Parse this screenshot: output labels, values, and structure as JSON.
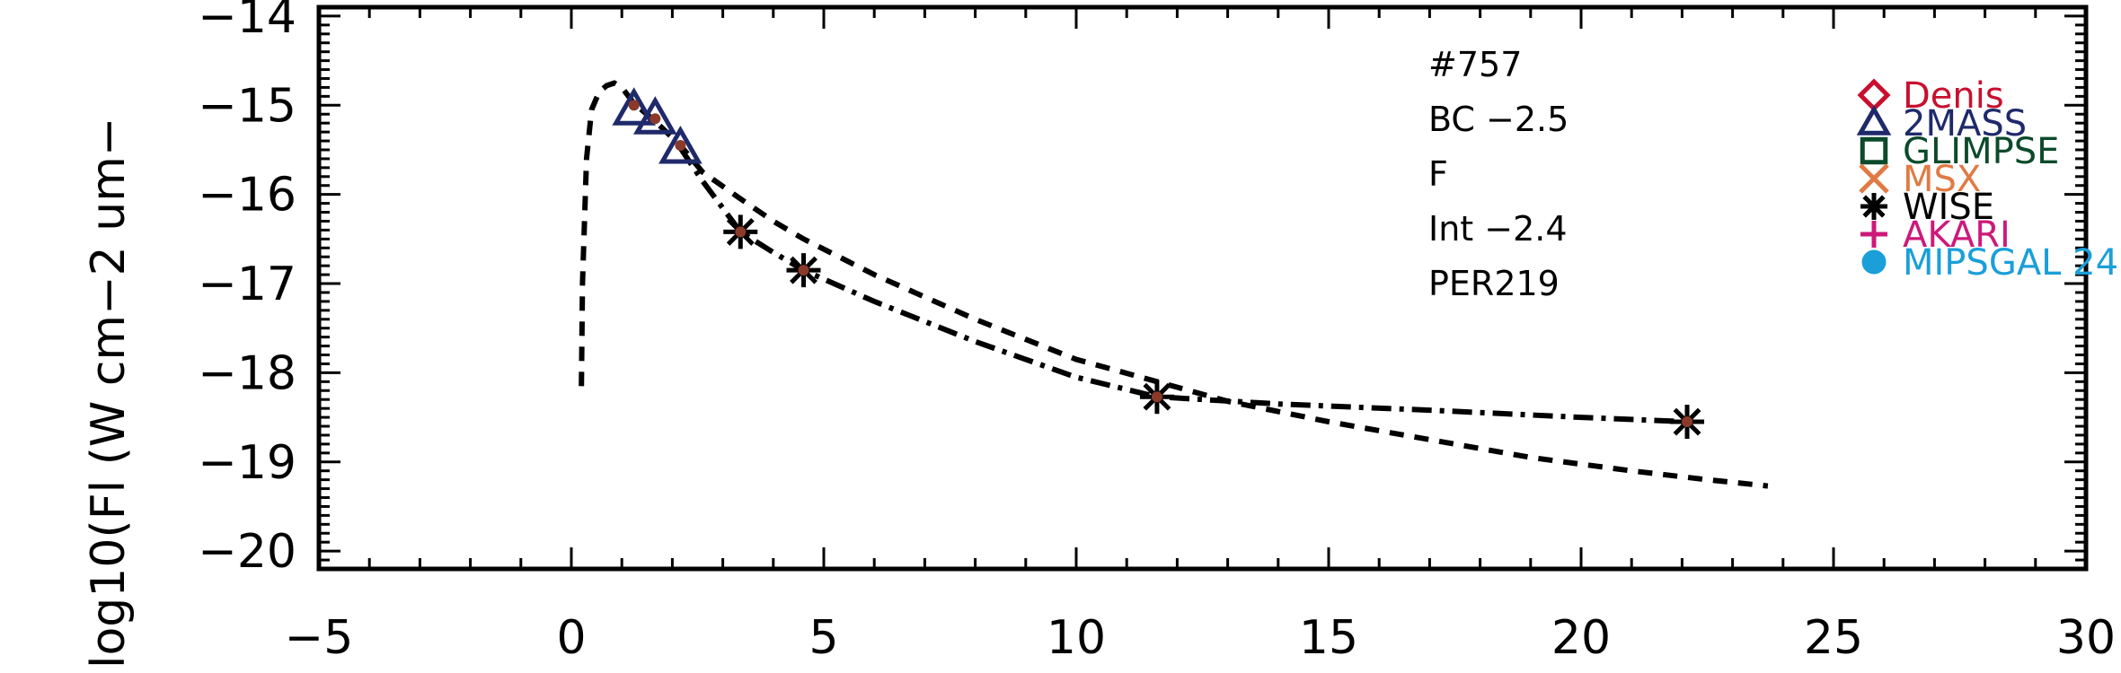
{
  "chart_data": {
    "type": "scatter",
    "title": "",
    "xlabel": "",
    "ylabel": "log10(Fl (W cm−2 um−",
    "xlim": [
      -5,
      30
    ],
    "ylim": [
      -20.2,
      -13.9
    ],
    "xticks": [
      -5,
      0,
      5,
      10,
      15,
      20,
      25,
      30
    ],
    "xtick_labels": [
      "−5",
      "0",
      "5",
      "10",
      "15",
      "20",
      "25",
      "30"
    ],
    "yticks": [
      -14,
      -15,
      -16,
      -17,
      -18,
      -19,
      -20
    ],
    "ytick_labels": [
      "−14",
      "−15",
      "−16",
      "−17",
      "−18",
      "−19",
      "−20"
    ],
    "annotations": [
      "#757",
      "BC −2.5",
      "F",
      "Int −2.4",
      "PER219"
    ],
    "legend": {
      "position": "top-right",
      "entries": [
        {
          "name": "Denis",
          "marker": "diamond",
          "color": "#c8102e"
        },
        {
          "name": "2MASS",
          "marker": "triangle",
          "color": "#1f2a6b"
        },
        {
          "name": "GLIMPSE",
          "marker": "square",
          "color": "#0b4a2a"
        },
        {
          "name": "MSX",
          "marker": "x",
          "color": "#e07a44"
        },
        {
          "name": "WISE",
          "marker": "asterisk",
          "color": "#000000"
        },
        {
          "name": "AKARI",
          "marker": "plus",
          "color": "#cc1a7a"
        },
        {
          "name": "MIPSGAL 24",
          "marker": "circle",
          "color": "#1a9fd8"
        }
      ]
    },
    "series": [
      {
        "marker": "triangle",
        "color": "#1f2a6b",
        "x": [
          1.24,
          1.66,
          2.16
        ],
        "y": [
          -15.05,
          -15.15,
          -15.48
        ]
      },
      {
        "marker": "asterisk",
        "color": "#000000",
        "x": [
          3.35,
          4.6,
          11.6,
          22.1
        ],
        "y": [
          -16.42,
          -16.85,
          -18.27,
          -18.55
        ]
      },
      {
        "marker": "dot",
        "color": "#8b3a2a",
        "x": [
          1.24,
          1.66,
          2.16,
          3.35,
          4.6,
          11.6,
          22.1
        ],
        "y": [
          -15.0,
          -15.15,
          -15.45,
          -16.42,
          -16.85,
          -18.27,
          -18.55
        ]
      }
    ],
    "lines": [
      {
        "style": "dashed",
        "x": [
          0.2,
          0.22,
          0.3,
          0.4,
          0.55,
          0.7,
          0.85,
          1.0,
          1.24,
          1.66,
          2.16,
          2.6,
          3.35,
          4.0,
          4.6,
          6,
          8,
          10,
          11.6,
          13,
          15,
          17,
          19,
          21,
          22.5,
          23.7
        ],
        "y": [
          -18.15,
          -17.0,
          -15.6,
          -15.05,
          -14.85,
          -14.78,
          -14.75,
          -14.8,
          -14.98,
          -15.18,
          -15.45,
          -15.75,
          -16.05,
          -16.3,
          -16.5,
          -16.9,
          -17.4,
          -17.85,
          -18.1,
          -18.32,
          -18.55,
          -18.75,
          -18.95,
          -19.1,
          -19.2,
          -19.27
        ]
      },
      {
        "style": "dashdot",
        "x": [
          2.16,
          2.6,
          3.35,
          4.0,
          4.6,
          6,
          8,
          10,
          11.6,
          14,
          17,
          20,
          22.1
        ],
        "y": [
          -15.48,
          -15.85,
          -16.42,
          -16.65,
          -16.85,
          -17.2,
          -17.65,
          -18.05,
          -18.27,
          -18.35,
          -18.42,
          -18.5,
          -18.55
        ]
      }
    ]
  }
}
